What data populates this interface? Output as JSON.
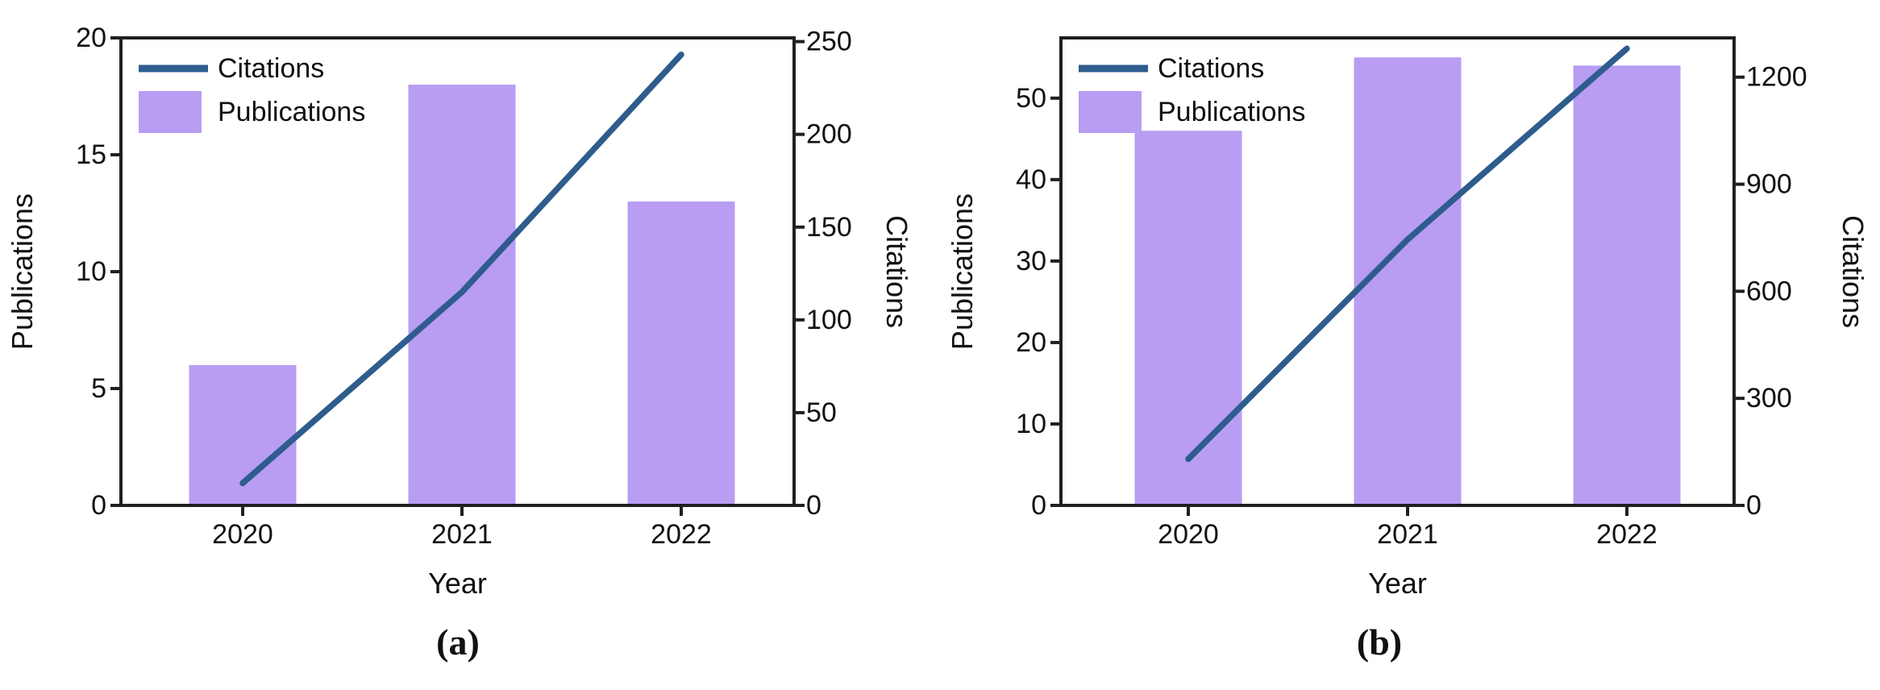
{
  "figure": {
    "background": "#ffffff"
  },
  "colors": {
    "bar_fill": "#b89df3",
    "line_stroke": "#2e5c8d",
    "axis_stroke": "#202020",
    "text": "#111111"
  },
  "chart_data": [
    {
      "type": "bar+line",
      "caption": "(a)",
      "xlabel": "Year",
      "ylabel_left": "Publications",
      "ylabel_right": "Citations",
      "categories": [
        "2020",
        "2021",
        "2022"
      ],
      "series": [
        {
          "name": "Citations",
          "type": "line",
          "axis": "right",
          "values": [
            12,
            115,
            243
          ]
        },
        {
          "name": "Publications",
          "type": "bar",
          "axis": "left",
          "values": [
            6,
            18,
            13
          ]
        }
      ],
      "yticks_left": [
        0,
        5,
        10,
        15,
        20
      ],
      "yticks_right": [
        0,
        50,
        100,
        150,
        200,
        250
      ],
      "ylim_left": [
        0,
        20
      ],
      "ylim_right": [
        0,
        252
      ],
      "legend": {
        "position": "upper-left",
        "entries": [
          "Citations",
          "Publications"
        ]
      },
      "grid": false
    },
    {
      "type": "bar+line",
      "caption": "(b)",
      "xlabel": "Year",
      "ylabel_left": "Publications",
      "ylabel_right": "Citations",
      "categories": [
        "2020",
        "2021",
        "2022"
      ],
      "series": [
        {
          "name": "Citations",
          "type": "line",
          "axis": "right",
          "values": [
            130,
            745,
            1280
          ]
        },
        {
          "name": "Publications",
          "type": "bar",
          "axis": "left",
          "values": [
            46,
            55,
            54
          ]
        }
      ],
      "yticks_left": [
        0,
        10,
        20,
        30,
        40,
        50
      ],
      "yticks_right": [
        0,
        300,
        600,
        900,
        1200
      ],
      "ylim_left": [
        0,
        57.4
      ],
      "ylim_right": [
        0,
        1310
      ],
      "legend": {
        "position": "upper-left",
        "entries": [
          "Citations",
          "Publications"
        ]
      },
      "grid": false
    }
  ]
}
